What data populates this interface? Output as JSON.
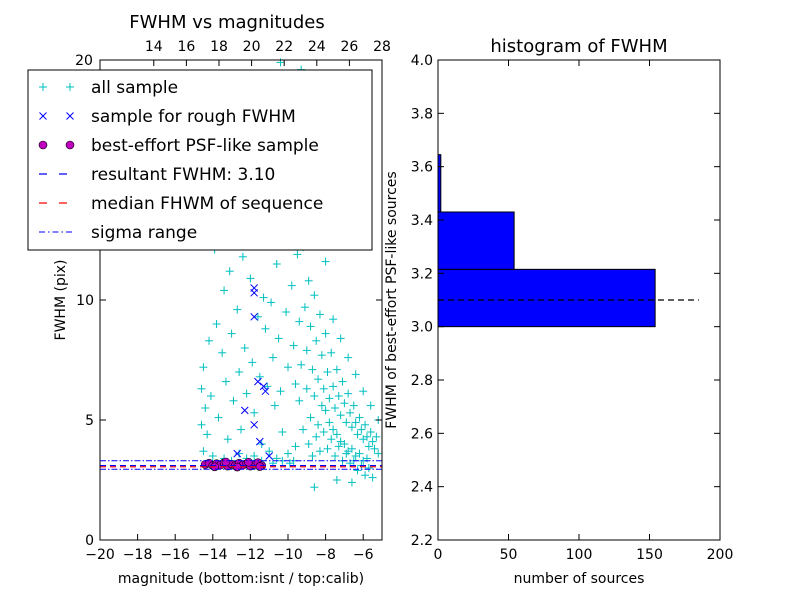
{
  "chart_data": [
    {
      "type": "scatter",
      "title": "FWHM vs magnitudes",
      "xlabel": "magnitude (bottom:isnt / top:calib)",
      "ylabel": "FWHM (pix)",
      "xlim": [
        -20,
        -5
      ],
      "ylim": [
        0,
        20
      ],
      "xticks": [
        "−20",
        "−18",
        "−16",
        "−14",
        "−12",
        "−10",
        "−8",
        "−6"
      ],
      "xtick_values": [
        -20,
        -18,
        -16,
        -14,
        -12,
        -10,
        -8,
        -6
      ],
      "yticks": [
        "0",
        "5",
        "10"
      ],
      "ytick_values": [
        0,
        5,
        10
      ],
      "top_axis": {
        "xlim": [
          10.7,
          28
        ],
        "ticks": [
          "14",
          "16",
          "18",
          "20",
          "22",
          "24",
          "26",
          "28"
        ],
        "tick_values": [
          14,
          16,
          18,
          20,
          22,
          24,
          26,
          28
        ],
        "corner_label": "20"
      },
      "legend_position": "upper-left",
      "legend": [
        {
          "label": "all sample",
          "marker": "plus",
          "color": "#00BFBF"
        },
        {
          "label": "sample for rough FWHM",
          "marker": "x",
          "color": "#0000FF"
        },
        {
          "label": "best-effort PSF-like sample",
          "marker": "circle",
          "color": "#BF00BF"
        },
        {
          "label": "resultant FWHM: 3.10",
          "marker": "dashed",
          "color": "#0000FF"
        },
        {
          "label": "median FHWM of sequence",
          "marker": "dashed",
          "color": "#FF0000"
        },
        {
          "label": "sigma range",
          "marker": "dashdot",
          "color": "#0000FF"
        }
      ],
      "resultant_fwhm": 3.1,
      "median_fwhm": 3.05,
      "sigma_range": [
        2.95,
        3.3
      ],
      "series": [
        {
          "name": "all sample",
          "color": "#00BFBF",
          "points": [
            [
              -14.6,
              6.3
            ],
            [
              -14.6,
              4.8
            ],
            [
              -14.5,
              7.2
            ],
            [
              -14.4,
              5.5
            ],
            [
              -14.5,
              3.7
            ],
            [
              -14.3,
              4.4
            ],
            [
              -14.2,
              8.3
            ],
            [
              -14.1,
              6.0
            ],
            [
              -13.9,
              12.1
            ],
            [
              -13.8,
              9.0
            ],
            [
              -13.7,
              5.1
            ],
            [
              -13.6,
              13.5
            ],
            [
              -13.5,
              7.8
            ],
            [
              -13.4,
              10.4
            ],
            [
              -13.3,
              6.6
            ],
            [
              -13.2,
              4.2
            ],
            [
              -13.1,
              11.2
            ],
            [
              -13.0,
              8.6
            ],
            [
              -12.9,
              5.8
            ],
            [
              -12.8,
              12.9
            ],
            [
              -12.7,
              9.6
            ],
            [
              -12.6,
              7.0
            ],
            [
              -12.5,
              4.6
            ],
            [
              -12.4,
              11.8
            ],
            [
              -12.3,
              8.0
            ],
            [
              -12.2,
              6.1
            ],
            [
              -12.1,
              13.9
            ],
            [
              -12.0,
              10.9
            ],
            [
              -11.9,
              7.4
            ],
            [
              -11.8,
              5.3
            ],
            [
              -11.7,
              12.4
            ],
            [
              -11.6,
              9.3
            ],
            [
              -11.5,
              6.8
            ],
            [
              -11.4,
              4.0
            ],
            [
              -11.3,
              10.1
            ],
            [
              -11.2,
              8.8
            ],
            [
              -11.1,
              6.4
            ],
            [
              -11.0,
              13.1
            ],
            [
              -10.9,
              9.9
            ],
            [
              -10.8,
              7.6
            ],
            [
              -10.7,
              5.6
            ],
            [
              -10.6,
              11.5
            ],
            [
              -10.5,
              8.4
            ],
            [
              -10.4,
              6.2
            ],
            [
              -10.3,
              4.5
            ],
            [
              -10.2,
              12.7
            ],
            [
              -10.1,
              9.5
            ],
            [
              -10.0,
              7.2
            ],
            [
              -9.9,
              13.6
            ],
            [
              -9.8,
              10.6
            ],
            [
              -9.7,
              8.1
            ],
            [
              -9.6,
              6.5
            ],
            [
              -9.5,
              11.9
            ],
            [
              -9.4,
              9.1
            ],
            [
              -9.3,
              7.3
            ],
            [
              -9.2,
              12.2
            ],
            [
              -9.1,
              9.7
            ],
            [
              -9.0,
              7.9
            ],
            [
              -8.9,
              10.8
            ],
            [
              -8.8,
              8.9
            ],
            [
              -8.7,
              7.1
            ],
            [
              -8.6,
              10.2
            ],
            [
              -8.5,
              8.3
            ],
            [
              -8.4,
              6.7
            ],
            [
              -8.3,
              9.4
            ],
            [
              -8.2,
              7.7
            ],
            [
              -8.1,
              6.3
            ],
            [
              -8.0,
              8.6
            ],
            [
              -7.9,
              7.0
            ],
            [
              -7.8,
              5.9
            ],
            [
              -7.7,
              7.8
            ],
            [
              -7.6,
              6.4
            ],
            [
              -7.5,
              5.5
            ],
            [
              -7.4,
              7.1
            ],
            [
              -7.3,
              6.0
            ],
            [
              -7.2,
              5.2
            ],
            [
              -7.1,
              6.6
            ],
            [
              -7.0,
              5.7
            ],
            [
              -6.9,
              4.9
            ],
            [
              -6.8,
              6.1
            ],
            [
              -6.7,
              5.3
            ],
            [
              -6.6,
              4.7
            ],
            [
              -6.5,
              5.6
            ],
            [
              -6.4,
              4.9
            ],
            [
              -6.3,
              4.4
            ],
            [
              -6.2,
              5.1
            ],
            [
              -6.1,
              4.6
            ],
            [
              -6.0,
              4.2
            ],
            [
              -5.9,
              4.8
            ],
            [
              -5.8,
              4.3
            ],
            [
              -5.7,
              3.9
            ],
            [
              -5.6,
              4.5
            ],
            [
              -5.5,
              4.1
            ],
            [
              -5.4,
              3.8
            ],
            [
              -5.3,
              4.3
            ],
            [
              -5.2,
              3.6
            ],
            [
              -9.6,
              3.9
            ],
            [
              -9.2,
              4.6
            ],
            [
              -8.8,
              5.1
            ],
            [
              -8.4,
              4.8
            ],
            [
              -8.0,
              5.4
            ],
            [
              -7.6,
              4.6
            ],
            [
              -7.2,
              4.1
            ],
            [
              -6.8,
              3.7
            ],
            [
              -6.4,
              3.5
            ],
            [
              -6.0,
              3.3
            ],
            [
              -9.4,
              5.8
            ],
            [
              -9.0,
              6.3
            ],
            [
              -8.6,
              6.0
            ],
            [
              -8.2,
              5.6
            ],
            [
              -7.8,
              4.9
            ],
            [
              -7.4,
              4.4
            ],
            [
              -7.0,
              4.0
            ],
            [
              -6.6,
              3.8
            ],
            [
              -6.2,
              3.6
            ],
            [
              -5.8,
              3.4
            ],
            [
              -8.9,
              4.0
            ],
            [
              -8.5,
              4.3
            ],
            [
              -8.1,
              4.5
            ],
            [
              -7.7,
              4.2
            ],
            [
              -7.3,
              3.9
            ],
            [
              -6.9,
              3.6
            ],
            [
              -6.5,
              3.3
            ],
            [
              -6.1,
              3.1
            ],
            [
              -5.7,
              3.0
            ],
            [
              -8.7,
              3.5
            ],
            [
              -8.3,
              3.7
            ],
            [
              -7.9,
              3.8
            ],
            [
              -7.5,
              3.5
            ],
            [
              -7.1,
              3.3
            ],
            [
              -6.7,
              3.2
            ],
            [
              -6.3,
              2.9
            ],
            [
              -5.9,
              2.7
            ],
            [
              -5.5,
              2.6
            ],
            [
              -8.6,
              2.2
            ],
            [
              -7.4,
              2.5
            ],
            [
              -6.6,
              2.4
            ],
            [
              -8.0,
              11.6
            ],
            [
              -8.4,
              12.8
            ],
            [
              -9.1,
              14.5
            ],
            [
              -8.7,
              16.2
            ],
            [
              -9.5,
              17.8
            ],
            [
              -9.3,
              19.6
            ],
            [
              -10.4,
              19.9
            ],
            [
              -11.0,
              15.8
            ],
            [
              -10.2,
              17.1
            ],
            [
              -9.8,
              15.0
            ],
            [
              -7.6,
              9.2
            ],
            [
              -7.2,
              8.4
            ],
            [
              -6.8,
              7.6
            ],
            [
              -6.4,
              6.9
            ],
            [
              -6.0,
              6.2
            ],
            [
              -5.6,
              5.6
            ],
            [
              -5.2,
              5.0
            ],
            [
              -13.4,
              3.4
            ],
            [
              -12.6,
              3.6
            ],
            [
              -11.8,
              3.5
            ],
            [
              -11.0,
              3.7
            ],
            [
              -10.6,
              3.4
            ],
            [
              -10.0,
              3.6
            ],
            [
              -9.7,
              3.3
            ],
            [
              -14.0,
              3.5
            ],
            [
              -13.0,
              3.3
            ],
            [
              -12.2,
              3.4
            ],
            [
              -11.4,
              3.3
            ],
            [
              -10.8,
              3.2
            ],
            [
              -10.3,
              3.3
            ],
            [
              -9.9,
              3.2
            ]
          ]
        },
        {
          "name": "sample for rough FWHM",
          "color": "#0000FF",
          "points": [
            [
              -11.8,
              10.5
            ],
            [
              -11.8,
              10.3
            ],
            [
              -11.8,
              9.3
            ],
            [
              -11.6,
              6.6
            ],
            [
              -11.3,
              6.4
            ],
            [
              -11.2,
              6.2
            ],
            [
              -12.3,
              5.4
            ],
            [
              -11.8,
              4.8
            ],
            [
              -11.5,
              4.1
            ],
            [
              -12.7,
              3.6
            ],
            [
              -11.0,
              3.5
            ]
          ]
        },
        {
          "name": "best-effort PSF-like sample",
          "color": "#BF00BF",
          "points": [
            [
              -14.4,
              3.15
            ],
            [
              -14.2,
              3.2
            ],
            [
              -14.0,
              3.1
            ],
            [
              -13.8,
              3.18
            ],
            [
              -13.6,
              3.12
            ],
            [
              -13.4,
              3.22
            ],
            [
              -13.2,
              3.08
            ],
            [
              -13.0,
              3.16
            ],
            [
              -12.8,
              3.1
            ],
            [
              -12.6,
              3.2
            ],
            [
              -12.4,
              3.12
            ],
            [
              -12.2,
              3.18
            ],
            [
              -12.0,
              3.08
            ],
            [
              -11.8,
              3.15
            ],
            [
              -11.6,
              3.22
            ],
            [
              -11.4,
              3.1
            ],
            [
              -13.9,
              3.05
            ],
            [
              -13.3,
              3.25
            ],
            [
              -12.7,
              3.04
            ],
            [
              -12.1,
              3.24
            ],
            [
              -11.5,
              3.06
            ]
          ]
        }
      ]
    },
    {
      "type": "bar",
      "orientation": "horizontal",
      "title": "histogram of FWHM",
      "xlabel": "number of sources",
      "ylabel": "FWHM of best-effort PSF-like sources",
      "xlim": [
        0,
        200
      ],
      "ylim": [
        2.2,
        4.0
      ],
      "xticks": [
        "0",
        "50",
        "100",
        "150",
        "200"
      ],
      "xtick_values": [
        0,
        50,
        100,
        150,
        200
      ],
      "yticks": [
        "2.2",
        "2.4",
        "2.6",
        "2.8",
        "3.0",
        "3.2",
        "3.4",
        "3.6",
        "3.8",
        "4.0"
      ],
      "ytick_values": [
        2.2,
        2.4,
        2.6,
        2.8,
        3.0,
        3.2,
        3.4,
        3.6,
        3.8,
        4.0
      ],
      "bar_color": "#0000FF",
      "bins": [
        {
          "range": [
            3.0,
            3.215
          ],
          "count": 154
        },
        {
          "range": [
            3.215,
            3.43
          ],
          "count": 54
        },
        {
          "range": [
            3.43,
            3.645
          ],
          "count": 2
        }
      ],
      "resultant_fwhm": 3.1,
      "resultant_line_extent": [
        0,
        185
      ]
    }
  ]
}
